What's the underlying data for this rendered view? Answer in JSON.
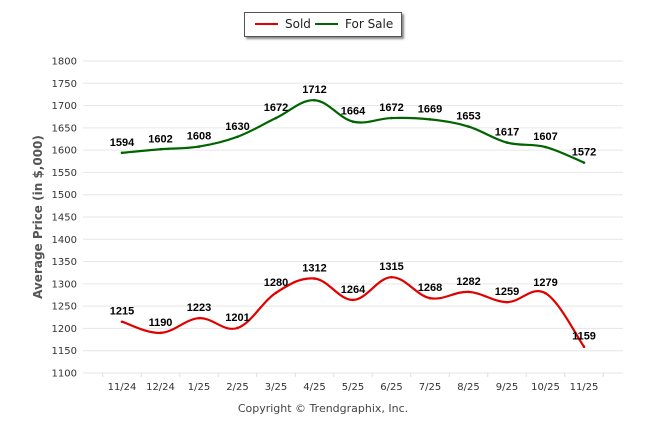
{
  "chart_data": {
    "type": "line",
    "title": "",
    "xlabel": "",
    "ylabel": "Average Price (in $,000)",
    "categories": [
      "11/24",
      "12/24",
      "1/25",
      "2/25",
      "3/25",
      "4/25",
      "5/25",
      "6/25",
      "7/25",
      "8/25",
      "9/25",
      "10/25",
      "11/25"
    ],
    "ylim": [
      1100,
      1800
    ],
    "yticks": [
      1100,
      1150,
      1200,
      1250,
      1300,
      1350,
      1400,
      1450,
      1500,
      1550,
      1600,
      1650,
      1700,
      1750,
      1800
    ],
    "grid": true,
    "legend_position": "top-center",
    "series": [
      {
        "name": "Sold",
        "color": "#e00000",
        "values": [
          1215,
          1190,
          1223,
          1201,
          1280,
          1312,
          1264,
          1315,
          1268,
          1282,
          1259,
          1279,
          1159
        ]
      },
      {
        "name": "For Sale",
        "color": "#006400",
        "values": [
          1594,
          1602,
          1608,
          1630,
          1672,
          1712,
          1664,
          1672,
          1669,
          1653,
          1617,
          1607,
          1572
        ]
      }
    ]
  },
  "legend": {
    "items": [
      {
        "label": "Sold",
        "color": "#e00000"
      },
      {
        "label": "For Sale",
        "color": "#006400"
      }
    ]
  },
  "footer": {
    "copyright": "Copyright © Trendgraphix, Inc."
  }
}
